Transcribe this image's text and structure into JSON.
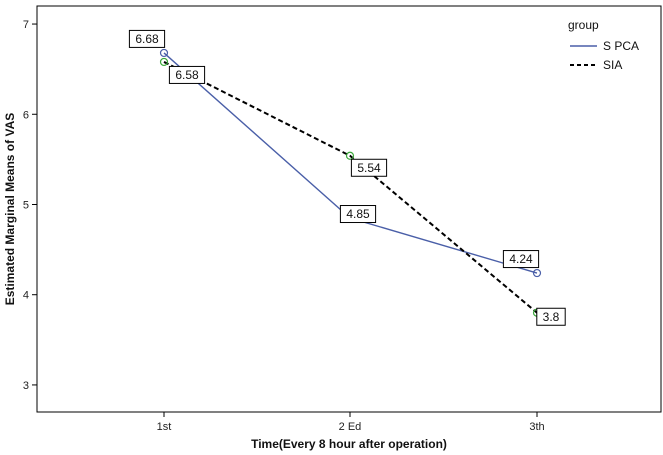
{
  "chart_data": {
    "type": "line",
    "title": "",
    "xlabel": "Time(Every 8 hour after operation)",
    "ylabel": "Estimated Marginal Means of VAS",
    "categories": [
      "1st",
      "2 Ed",
      "3th"
    ],
    "ylim": [
      2.7,
      7.2
    ],
    "yticks": [
      3,
      4,
      5,
      6,
      7
    ],
    "grid": false,
    "legend": {
      "title": "group",
      "placement": "top-right"
    },
    "series": [
      {
        "name": "S PCA",
        "values": [
          6.68,
          4.85,
          4.24
        ],
        "labels": [
          "6.68",
          "4.85",
          "4.24"
        ],
        "color": "#4a5fa8",
        "dash": "solid",
        "marker_color": "#4a5fa8"
      },
      {
        "name": "SIA",
        "values": [
          6.58,
          5.54,
          3.8
        ],
        "labels": [
          "6.58",
          "5.54",
          "3.8"
        ],
        "color": "#000000",
        "dash": "dashed",
        "marker_color": "#3aa83a"
      }
    ]
  }
}
